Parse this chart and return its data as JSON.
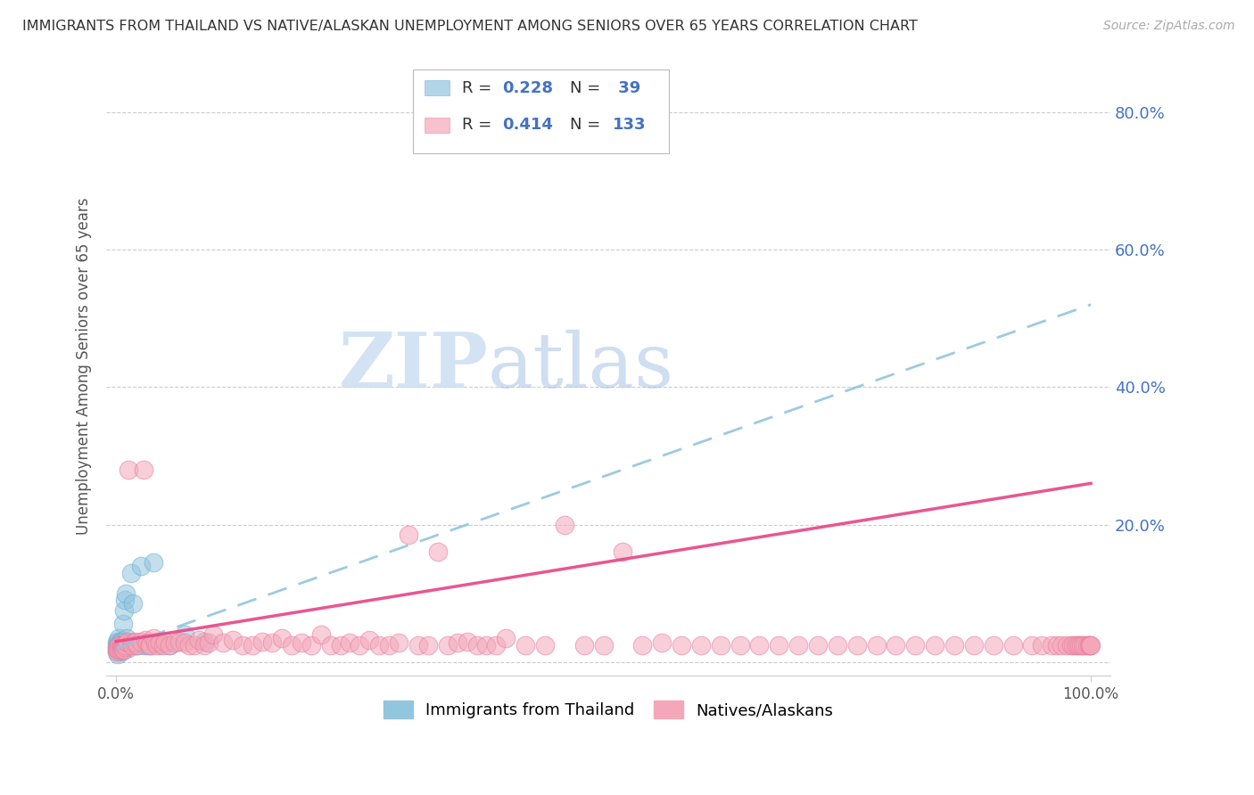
{
  "title": "IMMIGRANTS FROM THAILAND VS NATIVE/ALASKAN UNEMPLOYMENT AMONG SENIORS OVER 65 YEARS CORRELATION CHART",
  "source": "Source: ZipAtlas.com",
  "ylabel": "Unemployment Among Seniors over 65 years",
  "color_blue": "#92c5de",
  "color_blue_edge": "#6baed6",
  "color_pink": "#f4a7b9",
  "color_pink_edge": "#e87ea0",
  "color_blue_line": "#92c5de",
  "color_pink_line": "#e84d8a",
  "color_right_axis": "#4472c4",
  "watermark_color": "#c8dcf0",
  "legend_r_color": "#333333",
  "legend_val_color": "#4472c4",
  "legend_n_color": "#333333",
  "blue_x": [
    0.001,
    0.001,
    0.001,
    0.001,
    0.002,
    0.002,
    0.002,
    0.002,
    0.003,
    0.003,
    0.003,
    0.004,
    0.004,
    0.005,
    0.005,
    0.005,
    0.006,
    0.006,
    0.007,
    0.007,
    0.008,
    0.008,
    0.009,
    0.01,
    0.011,
    0.012,
    0.013,
    0.015,
    0.017,
    0.02,
    0.022,
    0.025,
    0.028,
    0.032,
    0.038,
    0.045,
    0.055,
    0.07,
    0.09
  ],
  "blue_y": [
    0.03,
    0.025,
    0.02,
    0.015,
    0.028,
    0.022,
    0.018,
    0.012,
    0.035,
    0.025,
    0.018,
    0.03,
    0.02,
    0.028,
    0.022,
    0.015,
    0.025,
    0.018,
    0.055,
    0.02,
    0.075,
    0.022,
    0.09,
    0.1,
    0.035,
    0.025,
    0.02,
    0.13,
    0.085,
    0.025,
    0.025,
    0.14,
    0.025,
    0.025,
    0.145,
    0.025,
    0.025,
    0.04,
    0.03
  ],
  "pink_x": [
    0.001,
    0.001,
    0.002,
    0.002,
    0.003,
    0.003,
    0.004,
    0.004,
    0.005,
    0.005,
    0.006,
    0.006,
    0.007,
    0.007,
    0.008,
    0.008,
    0.009,
    0.01,
    0.011,
    0.012,
    0.013,
    0.015,
    0.016,
    0.018,
    0.02,
    0.022,
    0.025,
    0.028,
    0.03,
    0.032,
    0.035,
    0.035,
    0.038,
    0.04,
    0.042,
    0.045,
    0.048,
    0.05,
    0.055,
    0.06,
    0.065,
    0.07,
    0.075,
    0.08,
    0.085,
    0.09,
    0.095,
    0.1,
    0.11,
    0.12,
    0.13,
    0.14,
    0.15,
    0.16,
    0.17,
    0.18,
    0.19,
    0.2,
    0.21,
    0.22,
    0.23,
    0.24,
    0.25,
    0.26,
    0.27,
    0.28,
    0.29,
    0.3,
    0.31,
    0.32,
    0.33,
    0.34,
    0.35,
    0.36,
    0.37,
    0.38,
    0.39,
    0.4,
    0.42,
    0.44,
    0.46,
    0.48,
    0.5,
    0.52,
    0.54,
    0.56,
    0.58,
    0.6,
    0.62,
    0.64,
    0.66,
    0.68,
    0.7,
    0.72,
    0.74,
    0.76,
    0.78,
    0.8,
    0.82,
    0.84,
    0.86,
    0.88,
    0.9,
    0.92,
    0.94,
    0.95,
    0.96,
    0.965,
    0.97,
    0.975,
    0.98,
    0.982,
    0.984,
    0.986,
    0.988,
    0.99,
    0.992,
    0.994,
    0.996,
    0.998,
    0.999,
    0.999,
    1.0
  ],
  "pink_y": [
    0.02,
    0.015,
    0.022,
    0.018,
    0.025,
    0.018,
    0.025,
    0.018,
    0.022,
    0.018,
    0.025,
    0.02,
    0.022,
    0.018,
    0.025,
    0.018,
    0.022,
    0.025,
    0.028,
    0.03,
    0.28,
    0.028,
    0.025,
    0.028,
    0.03,
    0.025,
    0.03,
    0.28,
    0.032,
    0.028,
    0.025,
    0.025,
    0.035,
    0.028,
    0.025,
    0.028,
    0.025,
    0.03,
    0.025,
    0.028,
    0.03,
    0.028,
    0.025,
    0.025,
    0.032,
    0.025,
    0.028,
    0.04,
    0.028,
    0.032,
    0.025,
    0.025,
    0.03,
    0.028,
    0.035,
    0.025,
    0.028,
    0.025,
    0.04,
    0.025,
    0.025,
    0.028,
    0.025,
    0.032,
    0.025,
    0.025,
    0.028,
    0.185,
    0.025,
    0.025,
    0.16,
    0.025,
    0.028,
    0.03,
    0.025,
    0.025,
    0.025,
    0.035,
    0.025,
    0.025,
    0.2,
    0.025,
    0.025,
    0.16,
    0.025,
    0.028,
    0.025,
    0.025,
    0.025,
    0.025,
    0.025,
    0.025,
    0.025,
    0.025,
    0.025,
    0.025,
    0.025,
    0.025,
    0.025,
    0.025,
    0.025,
    0.025,
    0.025,
    0.025,
    0.025,
    0.025,
    0.025,
    0.025,
    0.025,
    0.025,
    0.025,
    0.025,
    0.025,
    0.025,
    0.025,
    0.025,
    0.025,
    0.025,
    0.025,
    0.025,
    0.025,
    0.025,
    0.025
  ]
}
